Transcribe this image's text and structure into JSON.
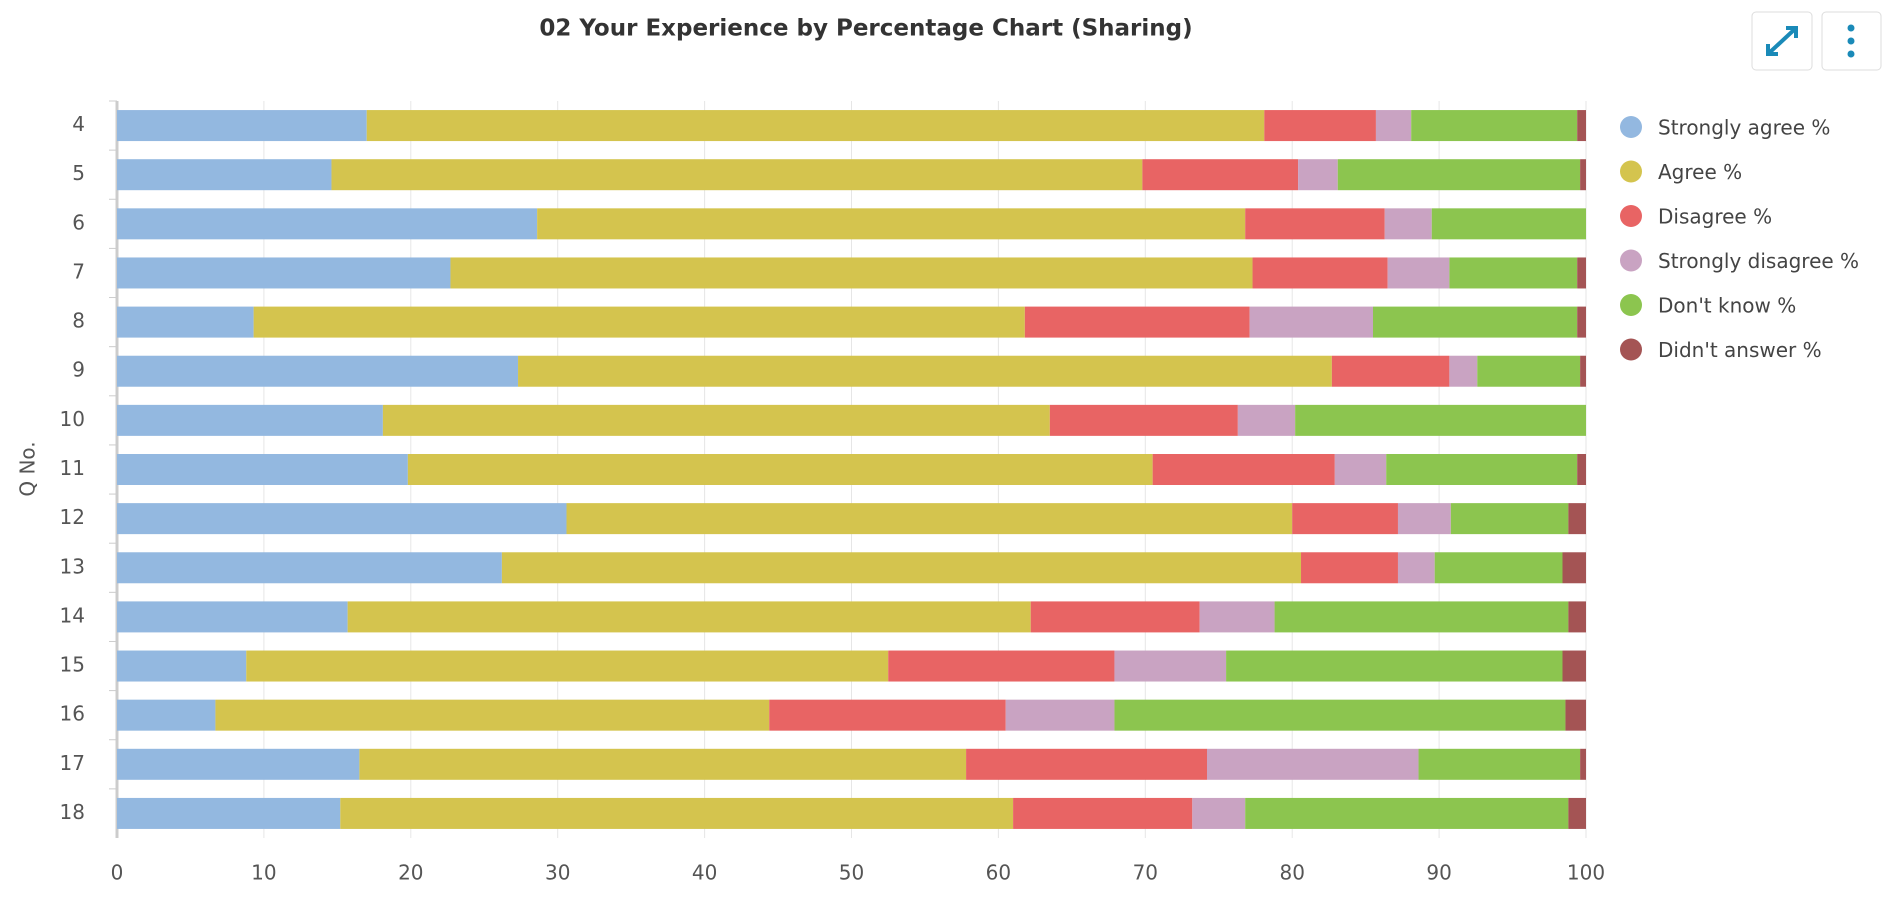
{
  "chart_data": {
    "type": "stacked_barh",
    "title": "02 Your Experience by Percentage Chart (Sharing)",
    "y_label": "Q No.",
    "categories": [
      "4",
      "5",
      "6",
      "7",
      "8",
      "9",
      "10",
      "11",
      "12",
      "13",
      "14",
      "15",
      "16",
      "17",
      "18"
    ],
    "series": [
      {
        "name": "Strongly agree %",
        "color": "#93b8e0",
        "values": [
          17.0,
          14.6,
          28.6,
          22.7,
          9.3,
          27.3,
          18.1,
          19.8,
          30.6,
          26.2,
          15.7,
          8.8,
          6.7,
          16.5,
          15.2
        ]
      },
      {
        "name": "Agree %",
        "color": "#d4c44e",
        "values": [
          61.1,
          55.2,
          48.2,
          54.6,
          52.5,
          55.4,
          45.4,
          50.7,
          49.4,
          54.4,
          46.5,
          43.7,
          37.7,
          41.3,
          45.8
        ]
      },
      {
        "name": "Disagree %",
        "color": "#e86464",
        "values": [
          7.6,
          10.6,
          9.5,
          9.2,
          15.3,
          8.0,
          12.8,
          12.4,
          7.2,
          6.6,
          11.5,
          15.4,
          16.1,
          16.4,
          12.2
        ]
      },
      {
        "name": "Strongly disagree %",
        "color": "#c9a3c2",
        "values": [
          2.4,
          2.7,
          3.2,
          4.2,
          8.4,
          1.9,
          3.9,
          3.5,
          3.6,
          2.5,
          5.1,
          7.6,
          7.4,
          14.4,
          3.6
        ]
      },
      {
        "name": "Don't know %",
        "color": "#8cc54f",
        "values": [
          11.3,
          16.5,
          10.5,
          8.7,
          13.9,
          7.0,
          19.8,
          13.0,
          8.0,
          8.7,
          20.0,
          22.9,
          30.7,
          11.0,
          22.0
        ]
      },
      {
        "name": "Didn't answer %",
        "color": "#a45454",
        "values": [
          0.6,
          0.4,
          0,
          0.6,
          0.6,
          0.4,
          0,
          0.6,
          1.2,
          1.6,
          1.2,
          1.6,
          1.4,
          0.4,
          1.2
        ]
      }
    ],
    "xlim": [
      0,
      100
    ],
    "xticks": [
      0,
      10,
      20,
      30,
      40,
      50,
      60,
      70,
      80,
      90,
      100
    ],
    "grid": true,
    "legend": "right"
  }
}
